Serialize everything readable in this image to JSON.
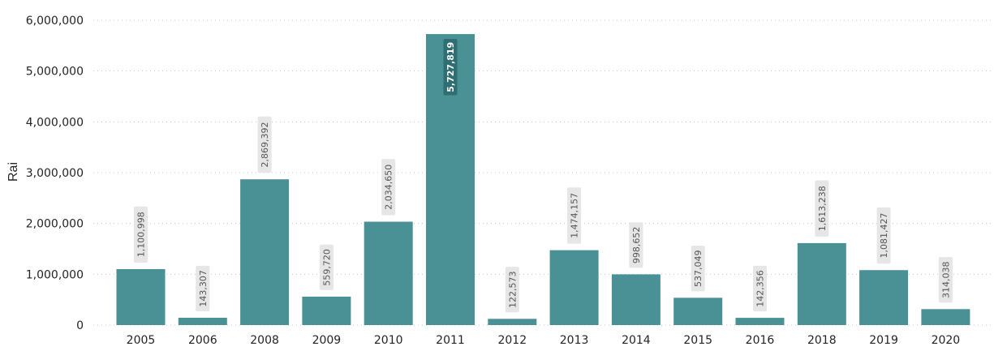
{
  "chart_data": {
    "type": "bar",
    "ylabel": "Rai",
    "xlabel": "",
    "ylim": [
      0,
      6000000
    ],
    "yticks": [
      "0",
      "1,000,000",
      "2,000,000",
      "3,000,000",
      "4,000,000",
      "5,000,000",
      "6,000,000"
    ],
    "grid": "horizontal-dotted",
    "categories": [
      "2005",
      "2006",
      "2008",
      "2009",
      "2010",
      "2011",
      "2012",
      "2013",
      "2014",
      "2015",
      "2016",
      "2018",
      "2019",
      "2020"
    ],
    "values": [
      1100998,
      143307,
      2869392,
      559720,
      2034650,
      5727819,
      122573,
      1474157,
      998652,
      537049,
      142356,
      1613238,
      1081427,
      314038
    ],
    "value_labels": [
      "1,100,998",
      "143,307",
      "2,869,392",
      "559,720",
      "2,034,650",
      "5,727,819",
      "122,573",
      "1,474,157",
      "998,652",
      "537,049",
      "142,356",
      "1,613,238",
      "1,081,427",
      "314,038"
    ],
    "bar_color": "#4a9196",
    "label_box_color": "#e6e6e6"
  }
}
